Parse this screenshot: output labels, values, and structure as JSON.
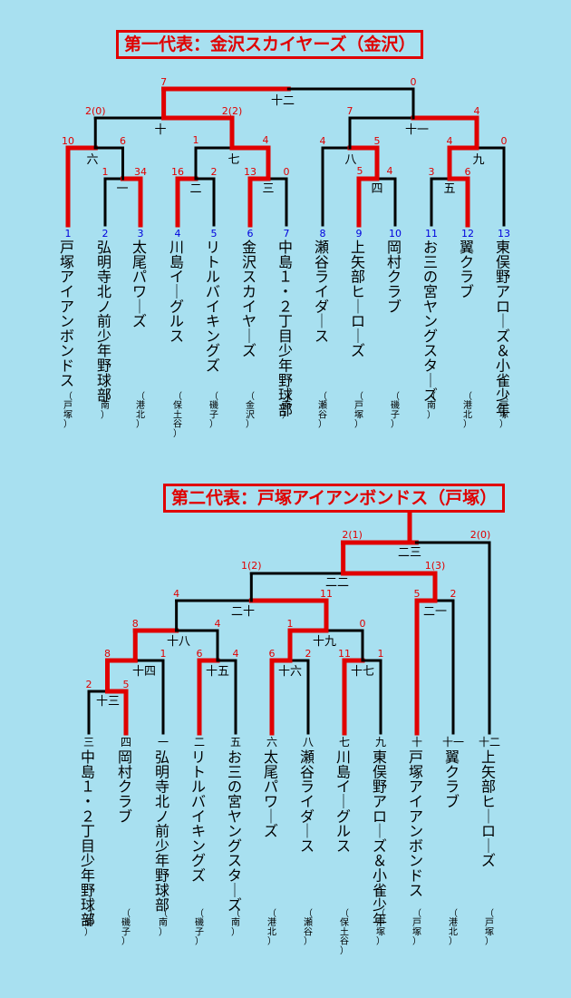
{
  "colors": {
    "background": "#a8e0f0",
    "winner": "#e00000",
    "line": "#000000",
    "seed_number": "#0000dd",
    "score": "#e00000"
  },
  "bracket1": {
    "title": "第一代表：金沢スカイヤーズ（金沢）",
    "teams": [
      {
        "seed": "1",
        "name": "戸塚アイアンボンドス",
        "area": "（戸塚）"
      },
      {
        "seed": "2",
        "name": "弘明寺北ノ前少年野球部",
        "area": "（南）"
      },
      {
        "seed": "3",
        "name": "太尾パワーズ",
        "area": "（港北）"
      },
      {
        "seed": "4",
        "name": "川島イーグルス",
        "area": "（保土谷）"
      },
      {
        "seed": "5",
        "name": "リトルバイキングズ",
        "area": "（磯子）"
      },
      {
        "seed": "6",
        "name": "金沢スカイヤーズ",
        "area": "（金沢）"
      },
      {
        "seed": "7",
        "name": "中島１・２丁目少年野球部",
        "area": "（南）"
      },
      {
        "seed": "8",
        "name": "瀬谷ライダース",
        "area": "（瀬谷）"
      },
      {
        "seed": "9",
        "name": "上矢部ヒーローズ",
        "area": "（戸塚）"
      },
      {
        "seed": "10",
        "name": "岡村クラブ",
        "area": "（磯子）"
      },
      {
        "seed": "11",
        "name": "お三の宮ヤングスターズ",
        "area": "（南）"
      },
      {
        "seed": "12",
        "name": "翼クラブ",
        "area": "（港北）"
      },
      {
        "seed": "13",
        "name": "東俣野アローズ＆小雀少年",
        "area": "（戸塚）"
      }
    ],
    "matches": [
      {
        "label": "一",
        "score_left": "1",
        "score_right": "34"
      },
      {
        "label": "二",
        "score_left": "16",
        "score_right": "2"
      },
      {
        "label": "三",
        "score_left": "13",
        "score_right": "0"
      },
      {
        "label": "四",
        "score_left": "5",
        "score_right": "4"
      },
      {
        "label": "五",
        "score_left": "3",
        "score_right": "6"
      },
      {
        "label": "六",
        "score_left": "10",
        "score_right": "6"
      },
      {
        "label": "七",
        "score_left": "1",
        "score_right": "4"
      },
      {
        "label": "八",
        "score_left": "4",
        "score_right": "5"
      },
      {
        "label": "九",
        "score_left": "4",
        "score_right": "0"
      },
      {
        "label": "十",
        "score_left": "2(0)",
        "score_right": "2(2)"
      },
      {
        "label": "十一",
        "score_left": "7",
        "score_right": "4"
      },
      {
        "label": "十二",
        "score_left": "7",
        "score_right": "0"
      }
    ]
  },
  "bracket2": {
    "title": "第二代表：戸塚アイアンボンドス（戸塚）",
    "teams": [
      {
        "seed": "三",
        "name": "中島１・２丁目少年野球部",
        "area": "（南）"
      },
      {
        "seed": "四",
        "name": "岡村クラブ",
        "area": "（磯子）"
      },
      {
        "seed": "一",
        "name": "弘明寺北ノ前少年野球部",
        "area": "（南）"
      },
      {
        "seed": "二",
        "name": "リトルバイキングズ",
        "area": "（磯子）"
      },
      {
        "seed": "五",
        "name": "お三の宮ヤングスターズ",
        "area": "（南）"
      },
      {
        "seed": "六",
        "name": "太尾パワーズ",
        "area": "（港北）"
      },
      {
        "seed": "八",
        "name": "瀬谷ライダース",
        "area": "（瀬谷）"
      },
      {
        "seed": "七",
        "name": "川島イーグルス",
        "area": "（保土谷）"
      },
      {
        "seed": "九",
        "name": "東俣野アローズ＆小雀少年",
        "area": "（戸塚）"
      },
      {
        "seed": "十",
        "name": "戸塚アイアンボンドス",
        "area": "（戸塚）"
      },
      {
        "seed": "十一",
        "name": "翼クラブ",
        "area": "（港北）"
      },
      {
        "seed": "十二",
        "name": "上矢部ヒーローズ",
        "area": "（戸塚）"
      }
    ],
    "matches": [
      {
        "label": "十三",
        "score_left": "2",
        "score_right": "5"
      },
      {
        "label": "十四",
        "score_left": "8",
        "score_right": "1"
      },
      {
        "label": "十五",
        "score_left": "6",
        "score_right": "4"
      },
      {
        "label": "十六",
        "score_left": "6",
        "score_right": "2"
      },
      {
        "label": "十七",
        "score_left": "11",
        "score_right": "1"
      },
      {
        "label": "十八",
        "score_left": "8",
        "score_right": "4"
      },
      {
        "label": "十九",
        "score_left": "1",
        "score_right": "0"
      },
      {
        "label": "二十",
        "score_left": "4",
        "score_right": "11"
      },
      {
        "label": "二一",
        "score_left": "5",
        "score_right": "2"
      },
      {
        "label": "二二",
        "score_left": "1(2)",
        "score_right": "1(3)"
      },
      {
        "label": "二三",
        "score_left": "2(1)",
        "score_right": "2(0)"
      }
    ]
  }
}
